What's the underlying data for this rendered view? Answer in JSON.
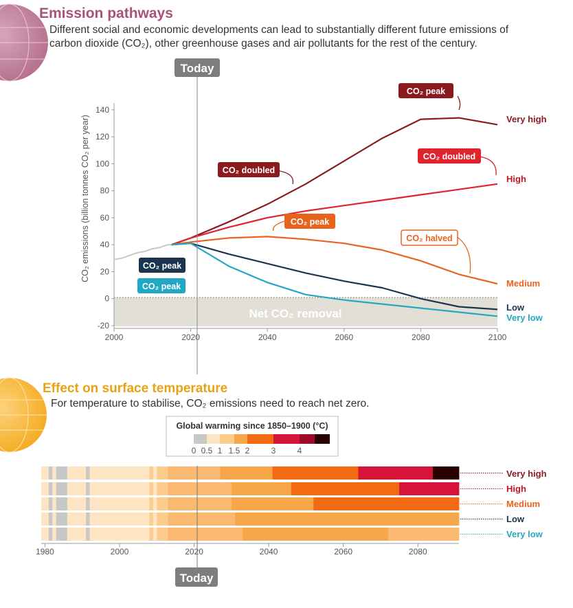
{
  "emissions": {
    "title": "Emission pathways",
    "subtitle_line1": "Different social and economic developments can lead to substantially different future emissions of",
    "subtitle_line2": "carbon dioxide (CO₂), other greenhouse gases and air pollutants for the rest of the century.",
    "today_label": "Today",
    "net_removal_label": "Net CO₂ removal",
    "colors": {
      "very_high": "#8b1a1e",
      "high": "#e0242d",
      "medium": "#e8631e",
      "low": "#1b3550",
      "very_low": "#22a7c4",
      "history": "#c8c8c8"
    }
  },
  "chart_data": [
    {
      "type": "line",
      "title": "Emission pathways",
      "ylabel": "CO₂ emissions (billion tonnes CO₂ per year)",
      "xlabel": "",
      "xlim": [
        2000,
        2100
      ],
      "ylim": [
        -20,
        145
      ],
      "x_ticks": [
        2000,
        2020,
        2040,
        2060,
        2080,
        2100
      ],
      "y_ticks": [
        -20,
        0,
        20,
        40,
        60,
        80,
        100,
        120,
        140
      ],
      "today_year": 2020,
      "history": {
        "name": "Historical",
        "x": [
          2000,
          2002,
          2004,
          2006,
          2008,
          2010,
          2012,
          2014,
          2015
        ],
        "y": [
          29,
          30,
          32,
          34,
          35,
          37,
          38,
          40,
          40
        ]
      },
      "series": [
        {
          "name": "Very high",
          "x": [
            2015,
            2020,
            2030,
            2040,
            2050,
            2060,
            2070,
            2080,
            2090,
            2100
          ],
          "y": [
            40,
            45,
            57,
            70,
            85,
            102,
            119,
            133,
            134,
            129
          ]
        },
        {
          "name": "High",
          "x": [
            2015,
            2020,
            2030,
            2040,
            2050,
            2060,
            2070,
            2080,
            2090,
            2100
          ],
          "y": [
            40,
            45,
            53,
            60,
            65,
            69,
            73,
            77,
            81,
            85
          ]
        },
        {
          "name": "Medium",
          "x": [
            2015,
            2020,
            2030,
            2040,
            2050,
            2060,
            2070,
            2080,
            2090,
            2100
          ],
          "y": [
            40,
            42,
            45,
            46,
            44,
            41,
            36,
            28,
            18,
            11
          ]
        },
        {
          "name": "Low",
          "x": [
            2015,
            2020,
            2030,
            2040,
            2050,
            2060,
            2070,
            2080,
            2090,
            2100
          ],
          "y": [
            40,
            41,
            33,
            26,
            19,
            13,
            8,
            0,
            -6,
            -8
          ]
        },
        {
          "name": "Very low",
          "x": [
            2015,
            2020,
            2030,
            2040,
            2050,
            2060,
            2070,
            2080,
            2090,
            2100
          ],
          "y": [
            40,
            41,
            24,
            12,
            3,
            -1,
            -4,
            -7,
            -10,
            -13
          ]
        }
      ],
      "annotations": [
        {
          "text": "CO₂ peak",
          "series": "Very high"
        },
        {
          "text": "CO₂ doubled",
          "series": "Very high"
        },
        {
          "text": "CO₂ doubled",
          "series": "High"
        },
        {
          "text": "CO₂ peak",
          "series": "Medium"
        },
        {
          "text": "CO₂ halved",
          "series": "Medium"
        },
        {
          "text": "CO₂ peak",
          "series": "Low"
        },
        {
          "text": "CO₂ peak",
          "series": "Very low"
        }
      ],
      "end_labels": [
        "Very high",
        "High",
        "Medium",
        "Low",
        "Very low"
      ]
    },
    {
      "type": "heatmap",
      "title": "Effect on surface temperature",
      "xlim": [
        1979,
        2091
      ],
      "x_ticks": [
        1980,
        2000,
        2020,
        2040,
        2060,
        2080
      ],
      "legend_title": "Global warming since 1850–1900 (°C)",
      "legend_ticks": [
        "0",
        "0.5",
        "1",
        "1.5",
        "2",
        "3",
        "4"
      ],
      "legend_colors": [
        "#c8c8c8",
        "#fde5c4",
        "#fccc8d",
        "#f8a64a",
        "#f26b12",
        "#d6143a",
        "#9e0b2a",
        "#2b0000"
      ],
      "rows": [
        {
          "name": "Very high",
          "segments": [
            [
              1979,
              1981,
              "w"
            ],
            [
              1981,
              1982,
              "g"
            ],
            [
              1982,
              1983,
              "w"
            ],
            [
              1983,
              1986,
              "g"
            ],
            [
              1986,
              1991,
              "w"
            ],
            [
              1991,
              1992,
              "g"
            ],
            [
              1992,
              2008,
              "w"
            ],
            [
              2008,
              2009,
              "l"
            ],
            [
              2009,
              2010,
              "w"
            ],
            [
              2010,
              2013,
              "l"
            ],
            [
              2013,
              2027,
              "m"
            ],
            [
              2027,
              2041,
              "o"
            ],
            [
              2041,
              2064,
              "r"
            ],
            [
              2064,
              2084,
              "c"
            ],
            [
              2084,
              2091,
              "k"
            ]
          ]
        },
        {
          "name": "High",
          "segments": [
            [
              1979,
              1981,
              "w"
            ],
            [
              1981,
              1982,
              "g"
            ],
            [
              1982,
              1983,
              "w"
            ],
            [
              1983,
              1986,
              "g"
            ],
            [
              1986,
              1991,
              "w"
            ],
            [
              1991,
              1992,
              "g"
            ],
            [
              1992,
              2008,
              "w"
            ],
            [
              2008,
              2009,
              "l"
            ],
            [
              2009,
              2010,
              "w"
            ],
            [
              2010,
              2013,
              "l"
            ],
            [
              2013,
              2030,
              "m"
            ],
            [
              2030,
              2046,
              "o"
            ],
            [
              2046,
              2075,
              "r"
            ],
            [
              2075,
              2091,
              "c"
            ]
          ]
        },
        {
          "name": "Medium",
          "segments": [
            [
              1979,
              1981,
              "w"
            ],
            [
              1981,
              1982,
              "g"
            ],
            [
              1982,
              1983,
              "w"
            ],
            [
              1983,
              1986,
              "g"
            ],
            [
              1986,
              1991,
              "w"
            ],
            [
              1991,
              1992,
              "g"
            ],
            [
              1992,
              2008,
              "w"
            ],
            [
              2008,
              2009,
              "l"
            ],
            [
              2009,
              2010,
              "w"
            ],
            [
              2010,
              2013,
              "l"
            ],
            [
              2013,
              2030,
              "m"
            ],
            [
              2030,
              2052,
              "o"
            ],
            [
              2052,
              2091,
              "r"
            ]
          ]
        },
        {
          "name": "Low",
          "segments": [
            [
              1979,
              1981,
              "w"
            ],
            [
              1981,
              1982,
              "g"
            ],
            [
              1982,
              1983,
              "w"
            ],
            [
              1983,
              1986,
              "g"
            ],
            [
              1986,
              1991,
              "w"
            ],
            [
              1991,
              1992,
              "g"
            ],
            [
              1992,
              2008,
              "w"
            ],
            [
              2008,
              2009,
              "l"
            ],
            [
              2009,
              2010,
              "w"
            ],
            [
              2010,
              2013,
              "l"
            ],
            [
              2013,
              2031,
              "m"
            ],
            [
              2031,
              2091,
              "o"
            ]
          ]
        },
        {
          "name": "Very low",
          "segments": [
            [
              1979,
              1981,
              "w"
            ],
            [
              1981,
              1982,
              "g"
            ],
            [
              1982,
              1983,
              "w"
            ],
            [
              1983,
              1986,
              "g"
            ],
            [
              1986,
              1991,
              "w"
            ],
            [
              1991,
              1992,
              "g"
            ],
            [
              1992,
              2008,
              "w"
            ],
            [
              2008,
              2009,
              "l"
            ],
            [
              2009,
              2010,
              "w"
            ],
            [
              2010,
              2013,
              "l"
            ],
            [
              2013,
              2033,
              "m"
            ],
            [
              2033,
              2072,
              "o"
            ],
            [
              2072,
              2091,
              "m"
            ]
          ]
        }
      ],
      "palette": {
        "w": "#fde5c4",
        "g": "#c8c8c8",
        "l": "#fccc8d",
        "m": "#fbb871",
        "o": "#f8a64a",
        "r": "#f26b12",
        "c": "#d6143a",
        "k": "#2b0000"
      },
      "row_label_colors": [
        "#8b1a1e",
        "#c0181e",
        "#e8631e",
        "#1b3550",
        "#22a7c4"
      ]
    }
  ],
  "temperature": {
    "title": "Effect on surface temperature",
    "subtitle": "For temperature to stabilise, CO₂ emissions need to reach net zero.",
    "today_label": "Today"
  }
}
